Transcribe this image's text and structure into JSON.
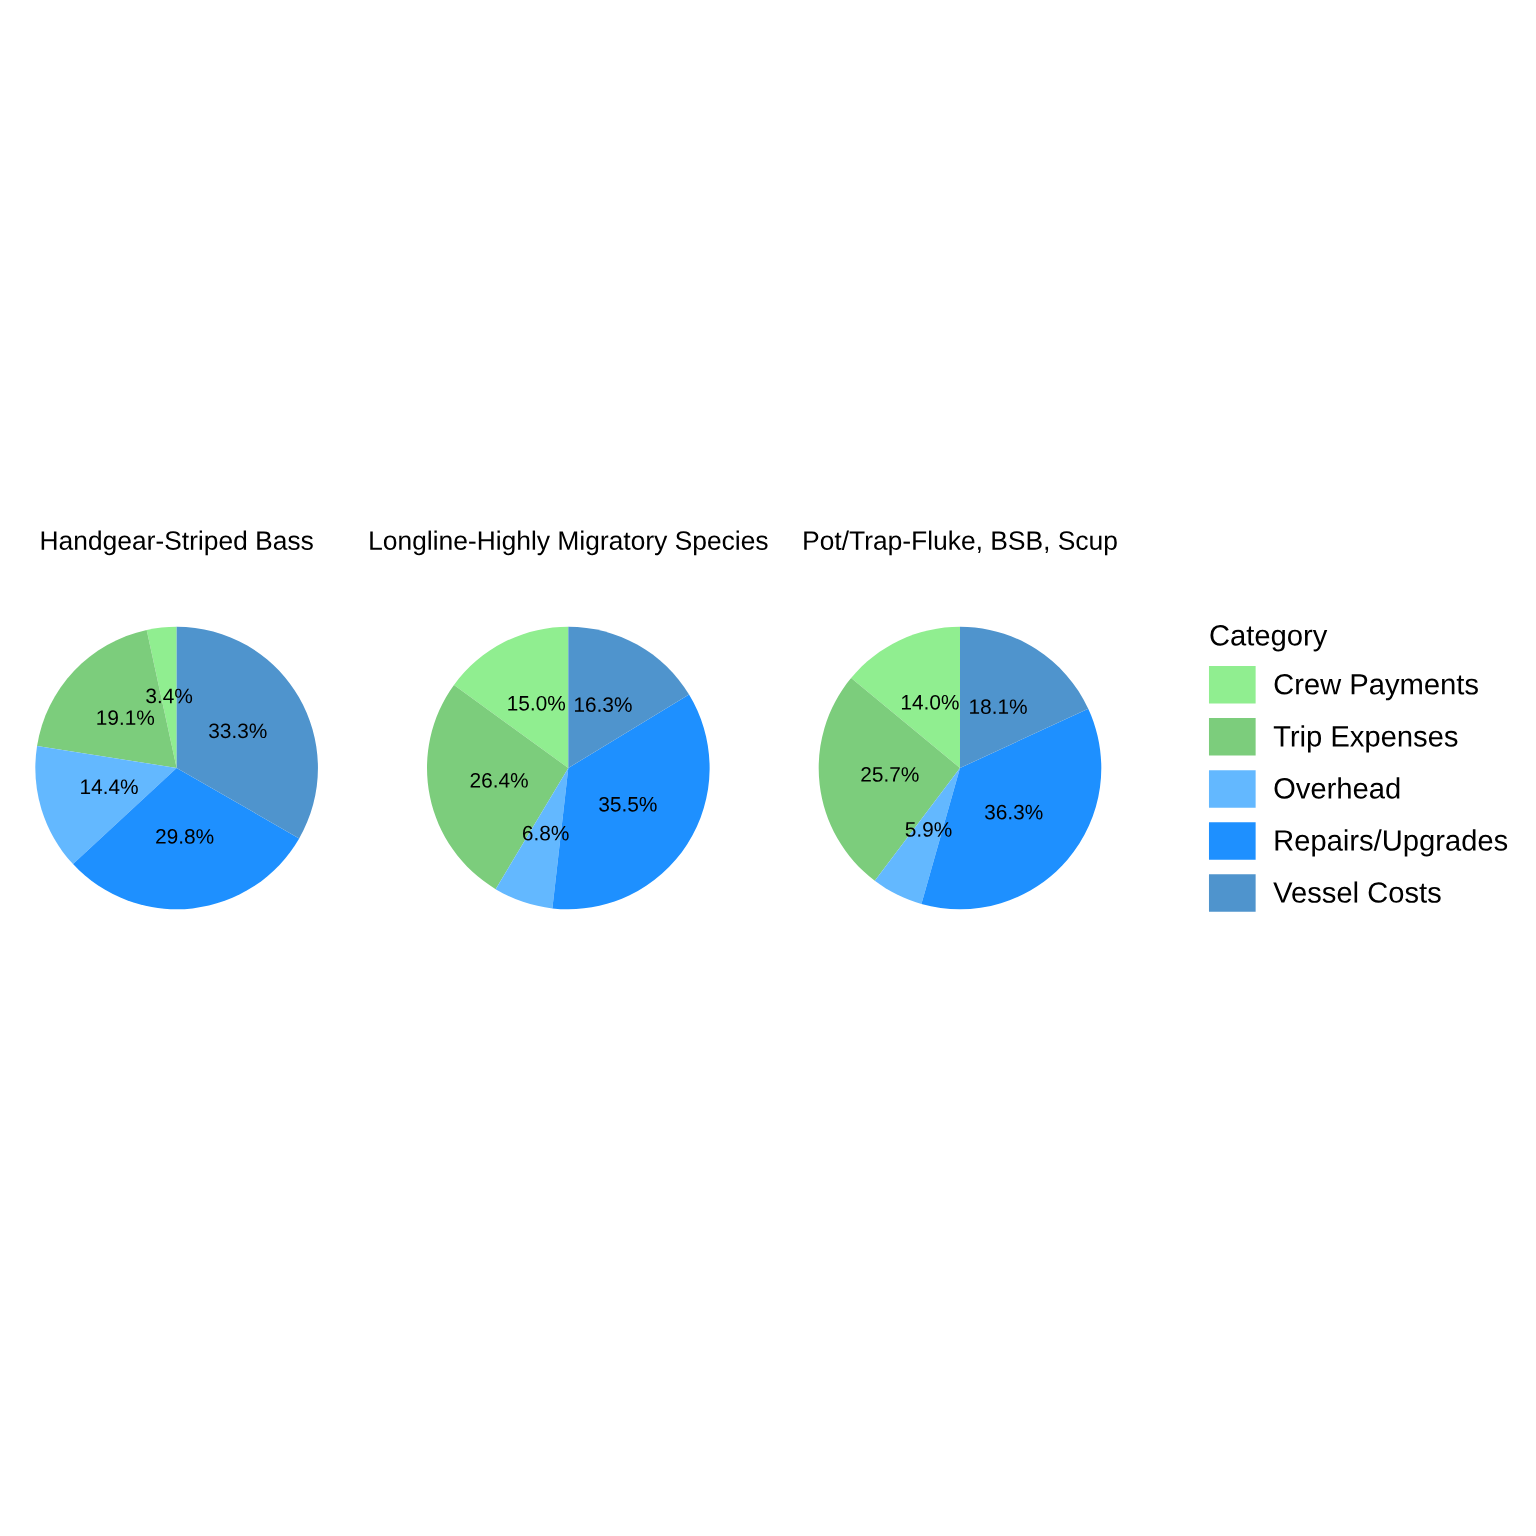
{
  "chart_data": [
    {
      "type": "pie",
      "title": "Handgear-Striped Bass",
      "categories": [
        "Crew Payments",
        "Trip Expenses",
        "Overhead",
        "Repairs/Upgrades",
        "Vessel Costs"
      ],
      "values": [
        3.4,
        19.1,
        14.4,
        29.8,
        33.3
      ],
      "colors": [
        "#90ee90",
        "#7ccd7c",
        "#63b8ff",
        "#1e90ff",
        "#4f94cd"
      ],
      "value_labels": [
        "3.4%",
        "19.1%",
        "14.4%",
        "29.8%",
        "33.3%"
      ],
      "legend": "right",
      "legend_title": "Category"
    },
    {
      "type": "pie",
      "title": "Longline-Highly Migratory Species",
      "categories": [
        null,
        null,
        null,
        null,
        null
      ],
      "values": [
        15.0,
        26.4,
        6.8,
        35.5,
        16.3
      ],
      "colors": [
        "#90ee90",
        "#7ccd7c",
        "#63b8ff",
        "#1e90ff",
        "#4f94cd"
      ],
      "value_labels": [
        "15.0%",
        "26.4%",
        "6.8%",
        "35.5%",
        "16.3%"
      ]
    },
    {
      "type": "pie",
      "title": "Pot/Trap-Fluke, BSB, Scup",
      "categories": [
        null,
        null,
        null,
        null,
        null
      ],
      "values": [
        14.0,
        25.7,
        5.9,
        36.3,
        18.1
      ],
      "colors": [
        "#90ee90",
        "#7ccd7c",
        "#63b8ff",
        "#1e90ff",
        "#4f94cd"
      ],
      "value_labels": [
        "14.0%",
        "25.7%",
        "5.9%",
        "36.3%",
        "18.1%"
      ]
    }
  ]
}
